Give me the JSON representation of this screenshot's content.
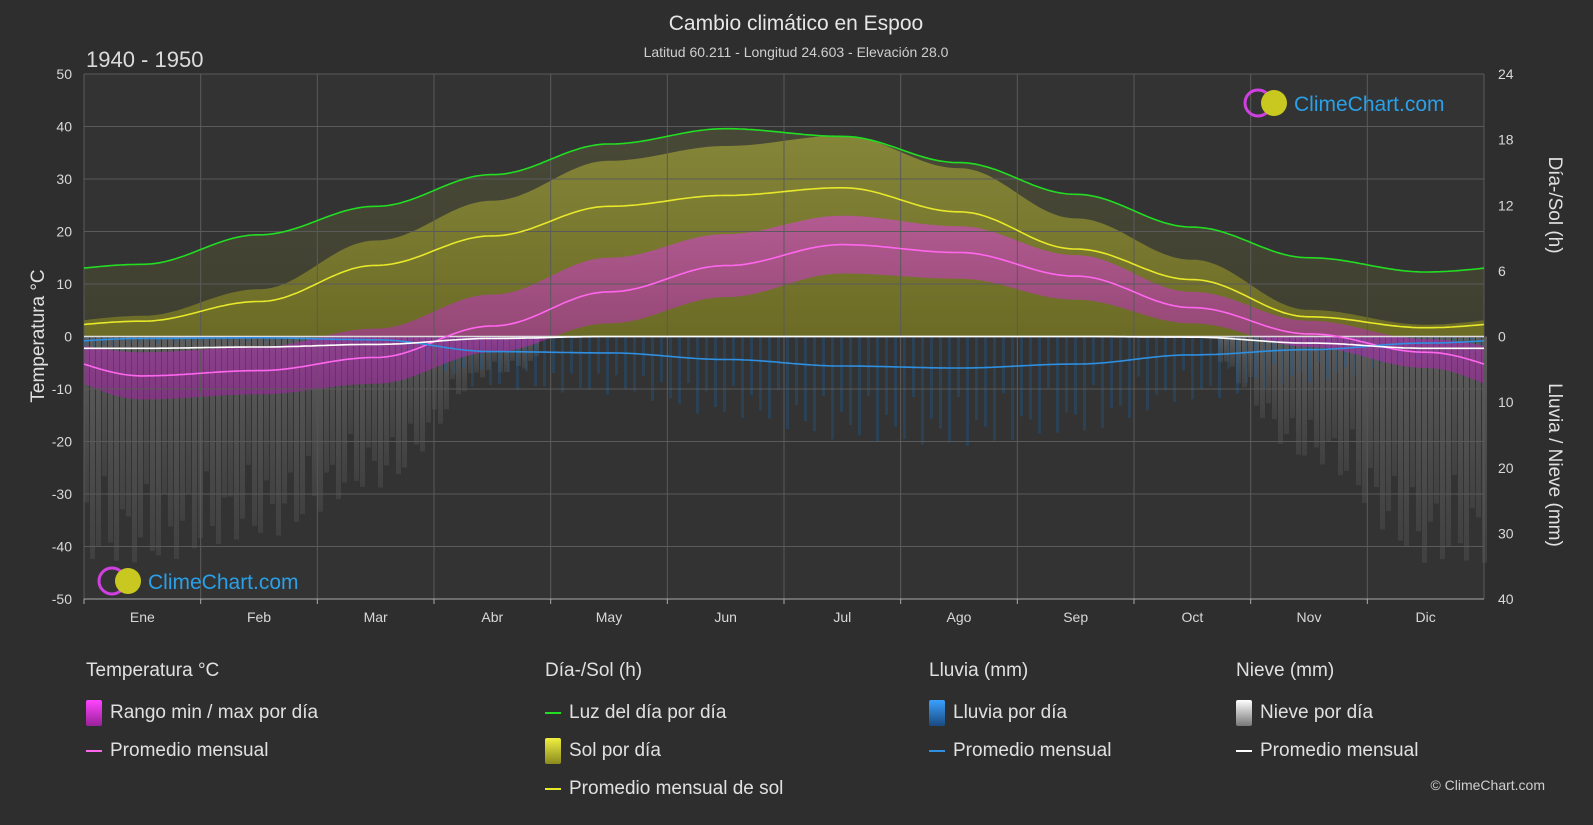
{
  "header": {
    "title": "Cambio climático en Espoo",
    "subtitle": "Latitud 60.211 - Longitud 24.603 - Elevación 28.0",
    "period": "1940 - 1950"
  },
  "brand": {
    "name": "ClimeChart.com",
    "copyright": "© ClimeChart.com"
  },
  "colors": {
    "background": "#2e2e2e",
    "daylight": "#22dd22",
    "sunshine": "#e8e82a",
    "sunshine_fill": "#b4b42a",
    "temperature": "#ff66ee",
    "temperature_fill": "#d040c0",
    "rain": "#2f8fe0",
    "snow": "#ffffff",
    "brand": "#2aa0e8"
  },
  "chart_data": {
    "type": "line",
    "categories": [
      "Ene",
      "Feb",
      "Mar",
      "Abr",
      "May",
      "Jun",
      "Jul",
      "Ago",
      "Sep",
      "Oct",
      "Nov",
      "Dic"
    ],
    "y_left": {
      "label": "Temperatura °C",
      "range": [
        -50,
        50
      ],
      "ticks": [
        50,
        40,
        30,
        20,
        10,
        0,
        -10,
        -20,
        -30,
        -40,
        -50
      ]
    },
    "y_right_top": {
      "label": "Día-/Sol (h)",
      "range": [
        0,
        24
      ],
      "ticks": [
        24,
        18,
        12,
        6,
        0
      ]
    },
    "y_right_bottom": {
      "label": "Lluvia / Nieve (mm)",
      "range": [
        0,
        40
      ],
      "ticks": [
        10,
        20,
        30,
        40
      ]
    },
    "grid": true,
    "series": [
      {
        "name": "Luz del día por día",
        "axis": "hours",
        "values": [
          6.6,
          9.3,
          11.9,
          14.8,
          17.6,
          19.0,
          18.3,
          15.9,
          13.0,
          10.0,
          7.2,
          5.9
        ]
      },
      {
        "name": "Promedio mensual de sol",
        "axis": "hours",
        "values": [
          1.4,
          3.2,
          6.5,
          9.2,
          11.9,
          12.9,
          13.6,
          11.4,
          8.0,
          5.2,
          1.8,
          0.8
        ]
      },
      {
        "name": "Temperatura promedio mensual",
        "axis": "temperature",
        "values": [
          -7.5,
          -6.5,
          -4.0,
          2.0,
          8.5,
          13.5,
          17.5,
          16.0,
          11.5,
          5.5,
          0.5,
          -3.0
        ]
      },
      {
        "name": "Temperatura máxima diaria",
        "axis": "temperature",
        "values": [
          -3.0,
          -2.0,
          1.5,
          8.0,
          15.0,
          19.5,
          23.0,
          21.0,
          15.5,
          8.5,
          3.0,
          -0.5
        ]
      },
      {
        "name": "Temperatura mínima diaria",
        "axis": "temperature",
        "values": [
          -12.0,
          -11.0,
          -9.0,
          -3.0,
          2.5,
          7.5,
          12.0,
          11.0,
          7.0,
          2.5,
          -2.0,
          -6.0
        ]
      },
      {
        "name": "Lluvia promedio mensual",
        "axis": "mm",
        "values": [
          0.3,
          0.2,
          0.5,
          2.3,
          2.5,
          3.5,
          4.5,
          4.8,
          4.2,
          2.8,
          2.0,
          1.0
        ]
      },
      {
        "name": "Nieve promedio mensual",
        "axis": "mm",
        "values": [
          1.8,
          1.6,
          1.2,
          0.3,
          0.0,
          0.0,
          0.0,
          0.0,
          0.0,
          0.1,
          1.0,
          1.8
        ]
      }
    ]
  },
  "legend": {
    "groups": [
      {
        "title": "Temperatura °C",
        "items": [
          {
            "label": "Rango min / max por día",
            "kind": "block",
            "color": "#e040e0"
          },
          {
            "label": "Promedio mensual",
            "kind": "line",
            "color": "#ff66ee"
          }
        ]
      },
      {
        "title": "Día-/Sol (h)",
        "items": [
          {
            "label": "Luz del día por día",
            "kind": "line",
            "color": "#22dd22"
          },
          {
            "label": "Sol por día",
            "kind": "block",
            "color": "#d8d83a"
          },
          {
            "label": "Promedio mensual de sol",
            "kind": "line",
            "color": "#e8e82a"
          }
        ]
      },
      {
        "title": "Lluvia (mm)",
        "items": [
          {
            "label": "Lluvia por día",
            "kind": "block",
            "color": "#2f8fe0"
          },
          {
            "label": "Promedio mensual",
            "kind": "line",
            "color": "#2f8fe0"
          }
        ]
      },
      {
        "title": "Nieve (mm)",
        "items": [
          {
            "label": "Nieve por día",
            "kind": "block",
            "color": "#dddddd"
          },
          {
            "label": "Promedio mensual",
            "kind": "line",
            "color": "#ffffff"
          }
        ]
      }
    ]
  }
}
